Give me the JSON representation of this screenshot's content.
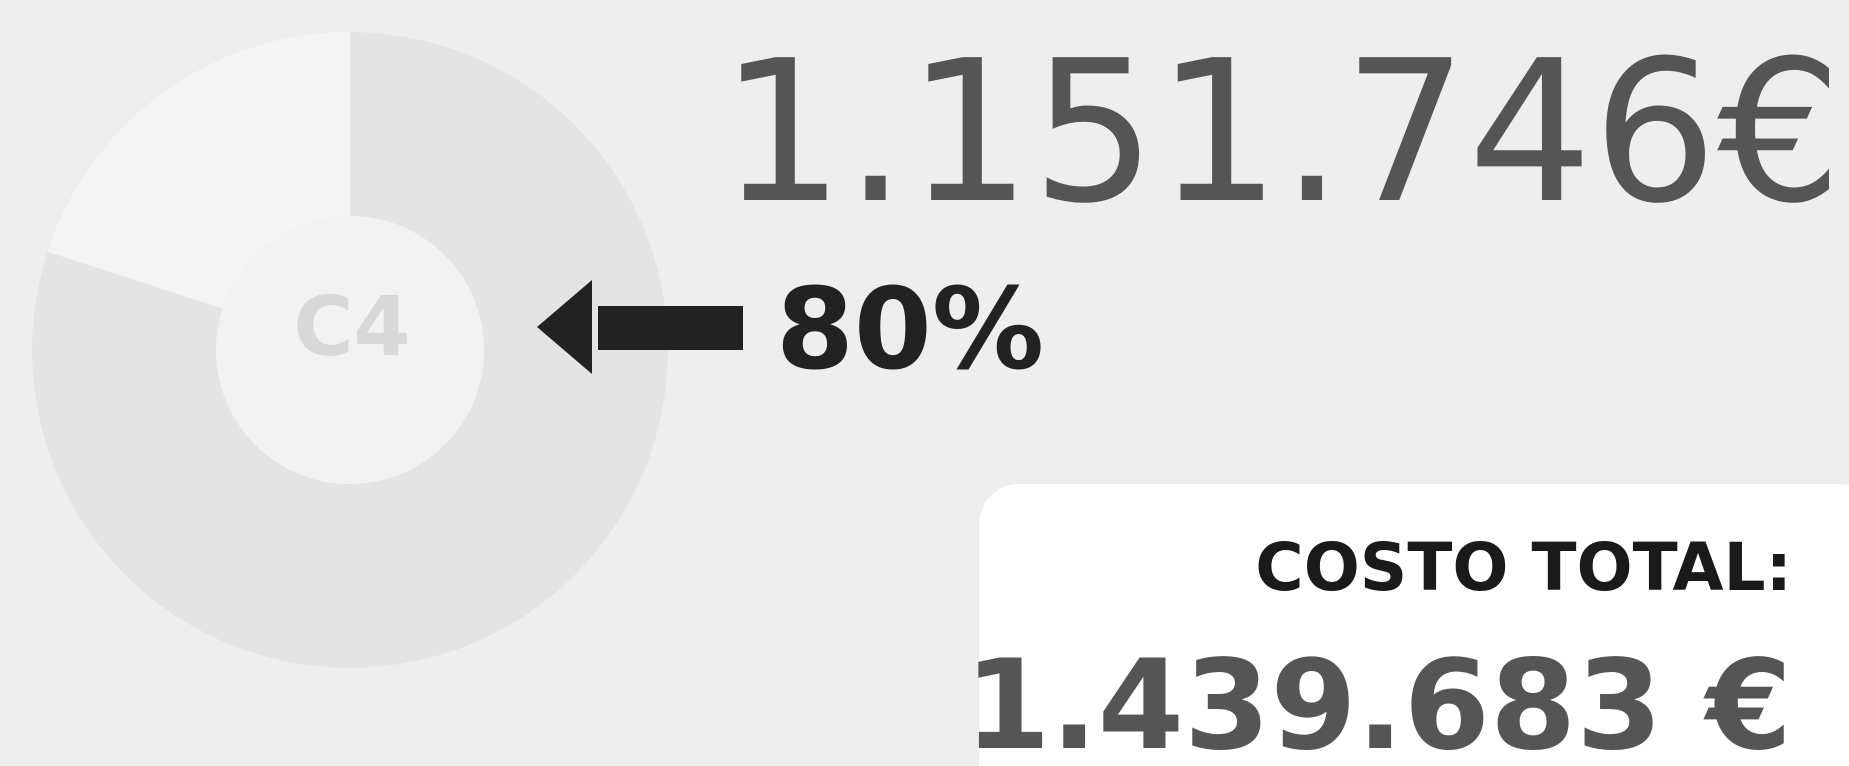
{
  "chart_data": {
    "type": "donut",
    "center_label": "C4",
    "values": [
      80
    ],
    "value_labels": [
      "80%"
    ],
    "color": "#e4e4e4",
    "headline": "1.151.746€",
    "total_label": "COSTO TOTAL:",
    "total_value": "1.439.683 €"
  }
}
